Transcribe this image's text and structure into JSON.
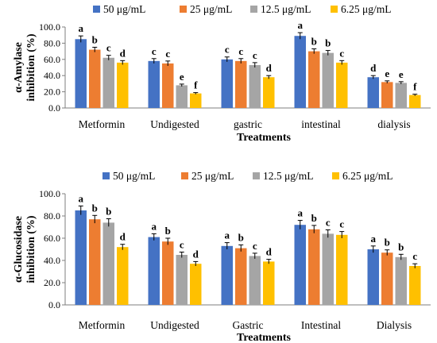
{
  "chart_data": [
    {
      "type": "bar",
      "panel": "top",
      "title": "",
      "xlabel": "Treatments",
      "ylabel": "α-Amylase inhibition (%)",
      "ylim": [
        0,
        100
      ],
      "y_ticks": [
        "0.0",
        "20.0",
        "40.0",
        "60.0",
        "80.0",
        "100.0"
      ],
      "grid": false,
      "legend_position": "top",
      "categories": [
        "Metformin",
        "Undigested",
        "gastric",
        "intestinal",
        "dialysis"
      ],
      "series": [
        {
          "name": "50 μg/mL",
          "color": "#4472C4",
          "values": [
            85,
            58,
            60,
            89,
            38
          ],
          "errors": [
            4,
            3,
            3,
            4,
            2
          ],
          "labels": [
            "a",
            "c",
            "c",
            "a",
            "d"
          ]
        },
        {
          "name": "25 μg/mL",
          "color": "#ED7D31",
          "values": [
            72,
            55,
            58,
            70,
            32
          ],
          "errors": [
            3,
            3,
            3,
            3,
            1.5
          ],
          "labels": [
            "b",
            "c",
            "c",
            "b",
            "e"
          ]
        },
        {
          "name": "12.5 μg/mL",
          "color": "#A5A5A5",
          "values": [
            62,
            28,
            53,
            68,
            31
          ],
          "errors": [
            3,
            1.5,
            3,
            3,
            1.5
          ],
          "labels": [
            "c",
            "e",
            "c",
            "b",
            "e"
          ]
        },
        {
          "name": "6.25 μg/mL",
          "color": "#FFC000",
          "values": [
            56,
            18,
            38,
            56,
            16
          ],
          "errors": [
            2.5,
            1,
            2,
            2.5,
            1
          ],
          "labels": [
            "d",
            "f",
            "d",
            "c",
            "f"
          ]
        }
      ]
    },
    {
      "type": "bar",
      "panel": "bottom",
      "title": "",
      "xlabel": "Treatments",
      "ylabel": "α-Glucosidase inhibition (%)",
      "ylim": [
        0,
        100
      ],
      "y_ticks": [
        "0.0",
        "20.0",
        "40.0",
        "60.0",
        "80.0",
        "100.0"
      ],
      "grid": false,
      "legend_position": "top",
      "categories": [
        "Metformin",
        "Undigested",
        "Gastric",
        "Intestinal",
        "Dialysis"
      ],
      "series": [
        {
          "name": "50 μg/mL",
          "color": "#4472C4",
          "values": [
            85,
            61,
            53,
            72,
            50
          ],
          "errors": [
            4,
            3,
            3,
            4,
            3
          ],
          "labels": [
            "a",
            "a",
            "a",
            "a",
            "a"
          ]
        },
        {
          "name": "25 μg/mL",
          "color": "#ED7D31",
          "values": [
            77,
            57,
            51,
            68,
            47
          ],
          "errors": [
            3.5,
            3,
            3,
            3.5,
            2.5
          ],
          "labels": [
            "b",
            "b",
            "b",
            "b",
            "b"
          ]
        },
        {
          "name": "12.5 μg/mL",
          "color": "#A5A5A5",
          "values": [
            74,
            45,
            44,
            64,
            43
          ],
          "errors": [
            3.5,
            2.5,
            2.5,
            3.5,
            2.5
          ],
          "labels": [
            "b",
            "c",
            "c",
            "c",
            "b"
          ]
        },
        {
          "name": "6.25 μg/mL",
          "color": "#FFC000",
          "values": [
            52,
            37,
            39,
            63,
            35
          ],
          "errors": [
            2.5,
            2,
            2,
            3,
            2
          ],
          "labels": [
            "d",
            "d",
            "d",
            "c",
            "c"
          ]
        }
      ]
    }
  ]
}
